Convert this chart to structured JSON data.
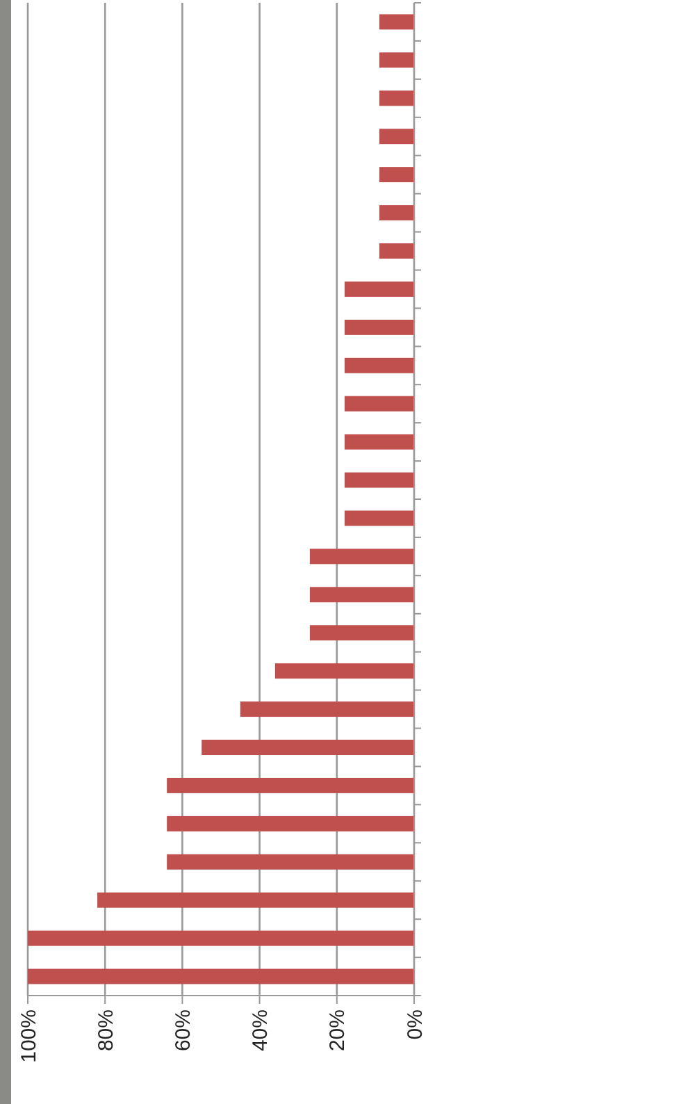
{
  "chart_data": {
    "type": "bar",
    "orientation": "horizontal",
    "categories": [
      null,
      null,
      null,
      null,
      null,
      null,
      null,
      null,
      null,
      null,
      null,
      null,
      null,
      null,
      null,
      null,
      null,
      null,
      null,
      null,
      null,
      null,
      null,
      null,
      null,
      null
    ],
    "values": [
      9,
      9,
      9,
      9,
      9,
      9,
      9,
      18,
      18,
      18,
      18,
      18,
      18,
      18,
      27,
      27,
      27,
      36,
      45,
      55,
      64,
      64,
      64,
      82,
      100,
      100
    ],
    "color": "#c0504d",
    "xlim": [
      100,
      0
    ],
    "xticks": [
      {
        "value": 100,
        "label": "100%"
      },
      {
        "value": 80,
        "label": "80%"
      },
      {
        "value": 60,
        "label": "60%"
      },
      {
        "value": 40,
        "label": "40%"
      },
      {
        "value": 20,
        "label": "20%"
      },
      {
        "value": 0,
        "label": "0%"
      }
    ],
    "grid": "x"
  }
}
